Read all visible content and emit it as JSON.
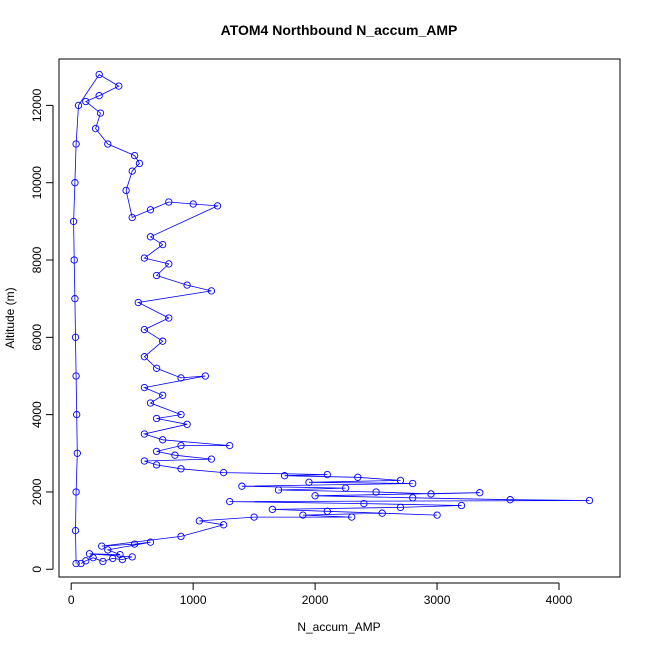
{
  "chart_data": {
    "type": "scatter",
    "title": "ATOM4 Northbound N_accum_AMP",
    "xlabel": "N_accum_AMP",
    "ylabel": "Altitude (m)",
    "xlim": [
      -100,
      4500
    ],
    "ylim": [
      -200,
      13200
    ],
    "xticks": [
      0,
      1000,
      2000,
      3000,
      4000
    ],
    "yticks": [
      0,
      2000,
      4000,
      6000,
      8000,
      10000,
      12000
    ],
    "grid": false,
    "series_color": "#0000ff",
    "marker": "open-circle",
    "connected": true,
    "series": [
      {
        "points": [
          [
            80,
            150
          ],
          [
            120,
            220
          ],
          [
            180,
            300
          ],
          [
            260,
            200
          ],
          [
            340,
            280
          ],
          [
            420,
            250
          ],
          [
            500,
            320
          ],
          [
            150,
            400
          ],
          [
            400,
            380
          ],
          [
            300,
            500
          ],
          [
            650,
            700
          ],
          [
            520,
            650
          ],
          [
            250,
            600
          ],
          [
            900,
            850
          ],
          [
            1250,
            1150
          ],
          [
            1050,
            1250
          ],
          [
            1500,
            1350
          ],
          [
            2300,
            1350
          ],
          [
            1900,
            1400
          ],
          [
            2550,
            1450
          ],
          [
            3000,
            1400
          ],
          [
            2100,
            1500
          ],
          [
            1650,
            1550
          ],
          [
            2700,
            1600
          ],
          [
            3200,
            1650
          ],
          [
            2400,
            1700
          ],
          [
            1300,
            1750
          ],
          [
            4250,
            1780
          ],
          [
            3600,
            1800
          ],
          [
            2800,
            1850
          ],
          [
            2000,
            1900
          ],
          [
            3350,
            1980
          ],
          [
            2950,
            1950
          ],
          [
            2500,
            2000
          ],
          [
            1700,
            2050
          ],
          [
            2250,
            2100
          ],
          [
            1400,
            2150
          ],
          [
            2800,
            2220
          ],
          [
            1950,
            2250
          ],
          [
            2700,
            2300
          ],
          [
            2350,
            2380
          ],
          [
            1750,
            2420
          ],
          [
            2100,
            2450
          ],
          [
            1250,
            2500
          ],
          [
            900,
            2600
          ],
          [
            700,
            2700
          ],
          [
            600,
            2800
          ],
          [
            1150,
            2850
          ],
          [
            850,
            2950
          ],
          [
            700,
            3050
          ],
          [
            900,
            3200
          ],
          [
            1300,
            3200
          ],
          [
            750,
            3350
          ],
          [
            600,
            3500
          ],
          [
            950,
            3750
          ],
          [
            700,
            3900
          ],
          [
            900,
            4000
          ],
          [
            650,
            4300
          ],
          [
            750,
            4500
          ],
          [
            600,
            4700
          ],
          [
            1100,
            5000
          ],
          [
            900,
            4950
          ],
          [
            700,
            5200
          ],
          [
            600,
            5500
          ],
          [
            750,
            5900
          ],
          [
            600,
            6200
          ],
          [
            800,
            6500
          ],
          [
            550,
            6900
          ],
          [
            1150,
            7200
          ],
          [
            950,
            7350
          ],
          [
            700,
            7600
          ],
          [
            800,
            7900
          ],
          [
            600,
            8050
          ],
          [
            750,
            8400
          ],
          [
            650,
            8600
          ],
          [
            1200,
            9400
          ],
          [
            1000,
            9450
          ],
          [
            800,
            9500
          ],
          [
            650,
            9300
          ],
          [
            500,
            9100
          ],
          [
            450,
            9800
          ],
          [
            500,
            10300
          ],
          [
            560,
            10500
          ],
          [
            520,
            10700
          ],
          [
            300,
            11000
          ],
          [
            200,
            11400
          ],
          [
            240,
            11800
          ],
          [
            120,
            12100
          ],
          [
            230,
            12250
          ],
          [
            390,
            12500
          ],
          [
            230,
            12800
          ],
          [
            60,
            12000
          ],
          [
            40,
            11000
          ],
          [
            30,
            10000
          ],
          [
            20,
            9000
          ],
          [
            25,
            8000
          ],
          [
            30,
            7000
          ],
          [
            35,
            6000
          ],
          [
            40,
            5000
          ],
          [
            45,
            4000
          ],
          [
            50,
            3000
          ],
          [
            40,
            2000
          ],
          [
            35,
            1000
          ],
          [
            40,
            150
          ]
        ]
      }
    ]
  }
}
